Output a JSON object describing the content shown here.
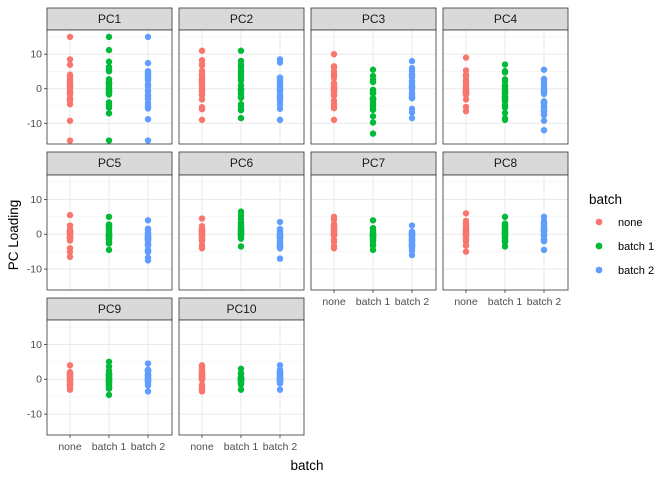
{
  "chart_data": {
    "type": "scatter",
    "facet_layout": "4 columns, wrapped (ggplot facet_wrap)",
    "xlabel": "batch",
    "ylabel": "PC Loading",
    "categories": [
      "none",
      "batch 1",
      "batch 2"
    ],
    "ylim": [
      -16,
      17
    ],
    "yticks": [
      -10,
      0,
      10
    ],
    "grid": true,
    "legend": {
      "title": "batch",
      "position": "right",
      "entries": [
        {
          "label": "none",
          "color": "#F8766D"
        },
        {
          "label": "batch 1",
          "color": "#00BA38"
        },
        {
          "label": "batch 2",
          "color": "#619CFF"
        }
      ]
    },
    "panels": [
      {
        "label": "PC1",
        "ranges": [
          [
            -15,
            15
          ],
          [
            -15,
            15
          ],
          [
            -15,
            15
          ]
        ]
      },
      {
        "label": "PC2",
        "ranges": [
          [
            -9,
            11
          ],
          [
            -8.5,
            11
          ],
          [
            -9,
            8.5
          ]
        ]
      },
      {
        "label": "PC3",
        "ranges": [
          [
            -9,
            10
          ],
          [
            -13,
            5.5
          ],
          [
            -8.5,
            8
          ]
        ]
      },
      {
        "label": "PC4",
        "ranges": [
          [
            -6.5,
            9
          ],
          [
            -9,
            7
          ],
          [
            -12,
            5.5
          ]
        ]
      },
      {
        "label": "PC5",
        "ranges": [
          [
            -6.5,
            5.5
          ],
          [
            -4.5,
            5
          ],
          [
            -7.5,
            4
          ]
        ]
      },
      {
        "label": "PC6",
        "ranges": [
          [
            -4,
            4.5
          ],
          [
            -3.5,
            6.5
          ],
          [
            -7,
            3.5
          ]
        ]
      },
      {
        "label": "PC7",
        "ranges": [
          [
            -4,
            5
          ],
          [
            -4.5,
            4
          ],
          [
            -6,
            2.5
          ]
        ]
      },
      {
        "label": "PC8",
        "ranges": [
          [
            -5,
            6
          ],
          [
            -3.5,
            5
          ],
          [
            -4.5,
            5
          ]
        ]
      },
      {
        "label": "PC9",
        "ranges": [
          [
            -3,
            4
          ],
          [
            -4.5,
            5
          ],
          [
            -3.5,
            4.5
          ]
        ]
      },
      {
        "label": "PC10",
        "ranges": [
          [
            -3.5,
            4
          ],
          [
            -3,
            3
          ],
          [
            -3,
            4
          ]
        ]
      }
    ]
  }
}
